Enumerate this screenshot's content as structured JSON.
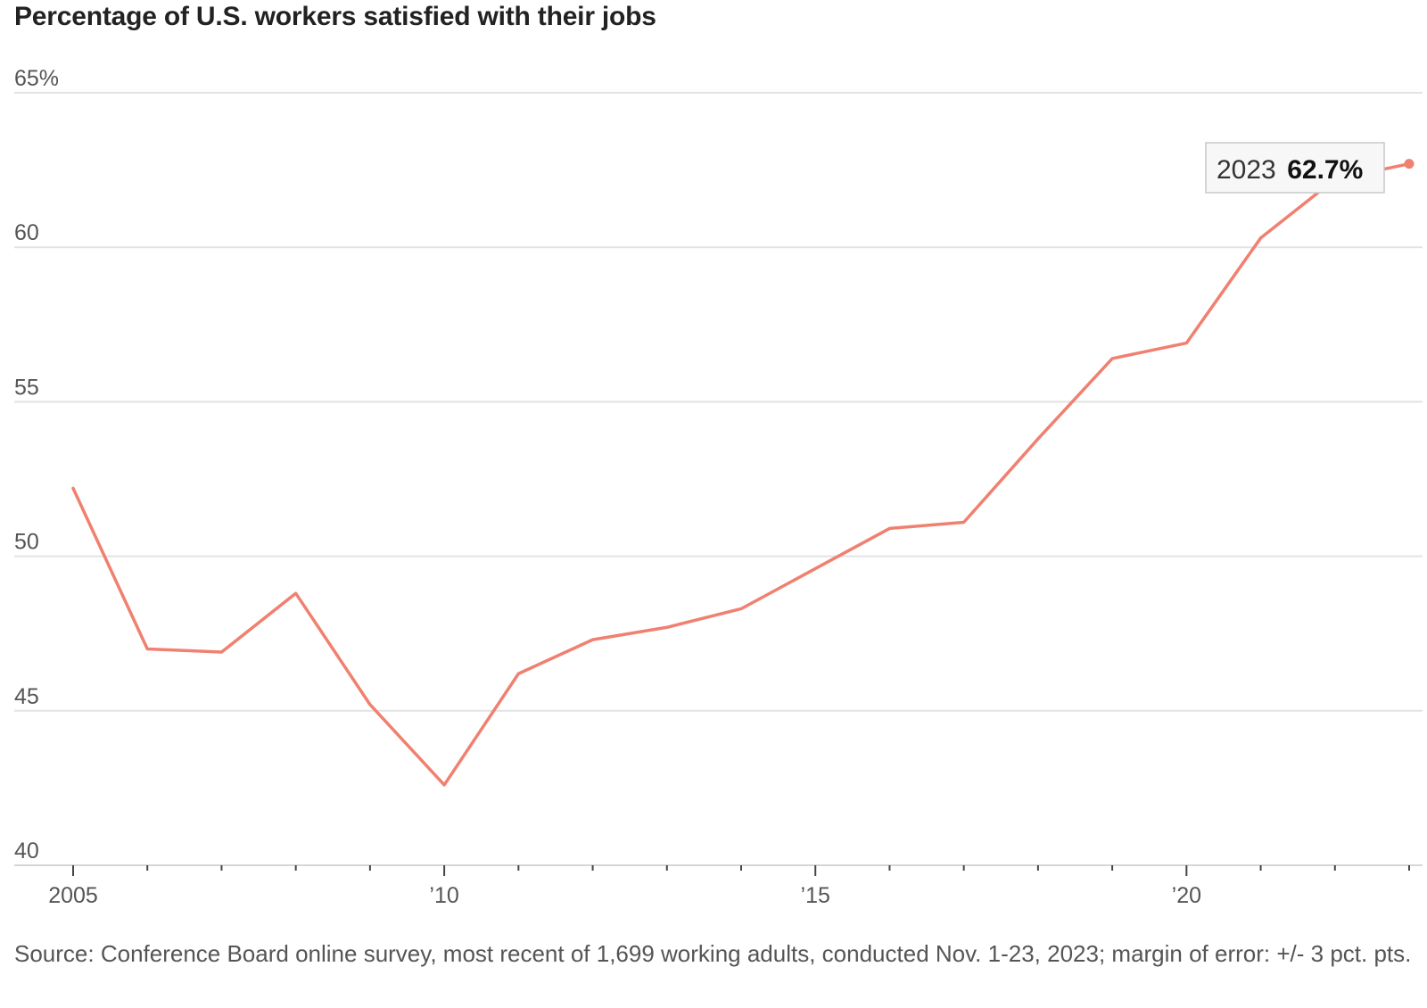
{
  "title": "Percentage of U.S. workers satisfied with their jobs",
  "source": "Source: Conference Board online survey, most recent of 1,699 working adults, conducted Nov. 1-23, 2023; margin of error: +/- 3 pct. pts.",
  "callout": {
    "year": "2023",
    "value": "62.7%"
  },
  "colors": {
    "line": "#f08070",
    "grid": "#e3e3e3",
    "axis": "#444444"
  },
  "chart_data": {
    "type": "line",
    "title": "Percentage of U.S. workers satisfied with their jobs",
    "xlabel": "",
    "ylabel": "",
    "x": [
      2005,
      2006,
      2007,
      2008,
      2009,
      2010,
      2011,
      2012,
      2013,
      2014,
      2015,
      2016,
      2017,
      2018,
      2019,
      2020,
      2021,
      2022,
      2023
    ],
    "series": [
      {
        "values": [
          52.2,
          47.0,
          46.9,
          48.8,
          45.2,
          42.6,
          46.2,
          47.3,
          47.7,
          48.3,
          49.6,
          50.9,
          51.1,
          53.8,
          56.4,
          56.9,
          60.3,
          62.2,
          62.7
        ]
      }
    ],
    "ylim": [
      40,
      65
    ],
    "xlim": [
      2005,
      2023
    ],
    "y_ticks": [
      {
        "value": 65,
        "label": "65%"
      },
      {
        "value": 60,
        "label": "60"
      },
      {
        "value": 55,
        "label": "55"
      },
      {
        "value": 50,
        "label": "50"
      },
      {
        "value": 45,
        "label": "45"
      },
      {
        "value": 40,
        "label": "40"
      }
    ],
    "x_ticks": [
      {
        "value": 2005,
        "label": "2005"
      },
      {
        "value": 2010,
        "label": "’10"
      },
      {
        "value": 2015,
        "label": "’15"
      },
      {
        "value": 2020,
        "label": "’20"
      }
    ],
    "grid": true,
    "legend": "none"
  }
}
